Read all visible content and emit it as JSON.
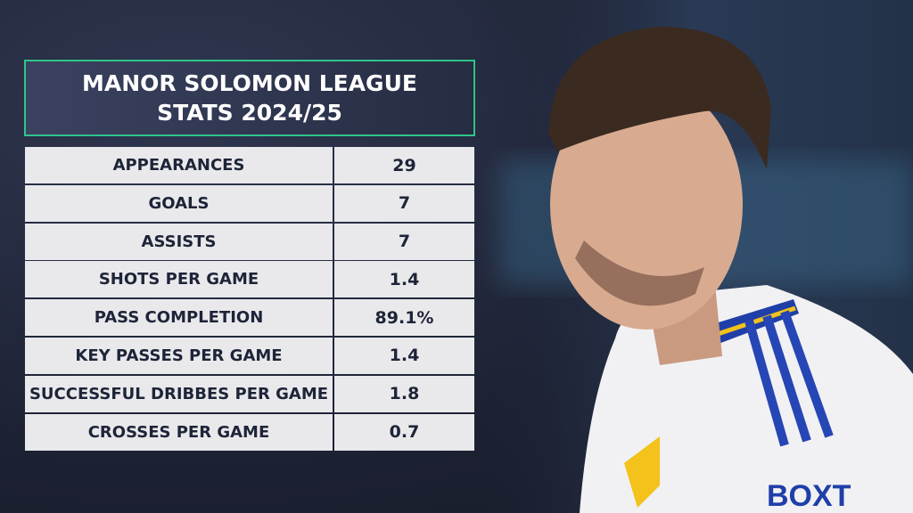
{
  "header": {
    "title": "MANOR SOLOMON LEAGUE STATS 2024/25"
  },
  "table": {
    "rows": [
      [
        "APPEARANCES",
        "29"
      ],
      [
        "GOALS",
        "7"
      ],
      [
        "ASSISTS",
        "7"
      ],
      [
        "SHOTS PER GAME",
        "1.4"
      ],
      [
        "PASS COMPLETION",
        "89.1%"
      ],
      [
        "KEY PASSES PER GAME",
        "1.4"
      ],
      [
        "SUCCESSFUL DRIBBES PER GAME",
        "1.8"
      ],
      [
        "CROSSES PER GAME",
        "0.7"
      ]
    ]
  }
}
